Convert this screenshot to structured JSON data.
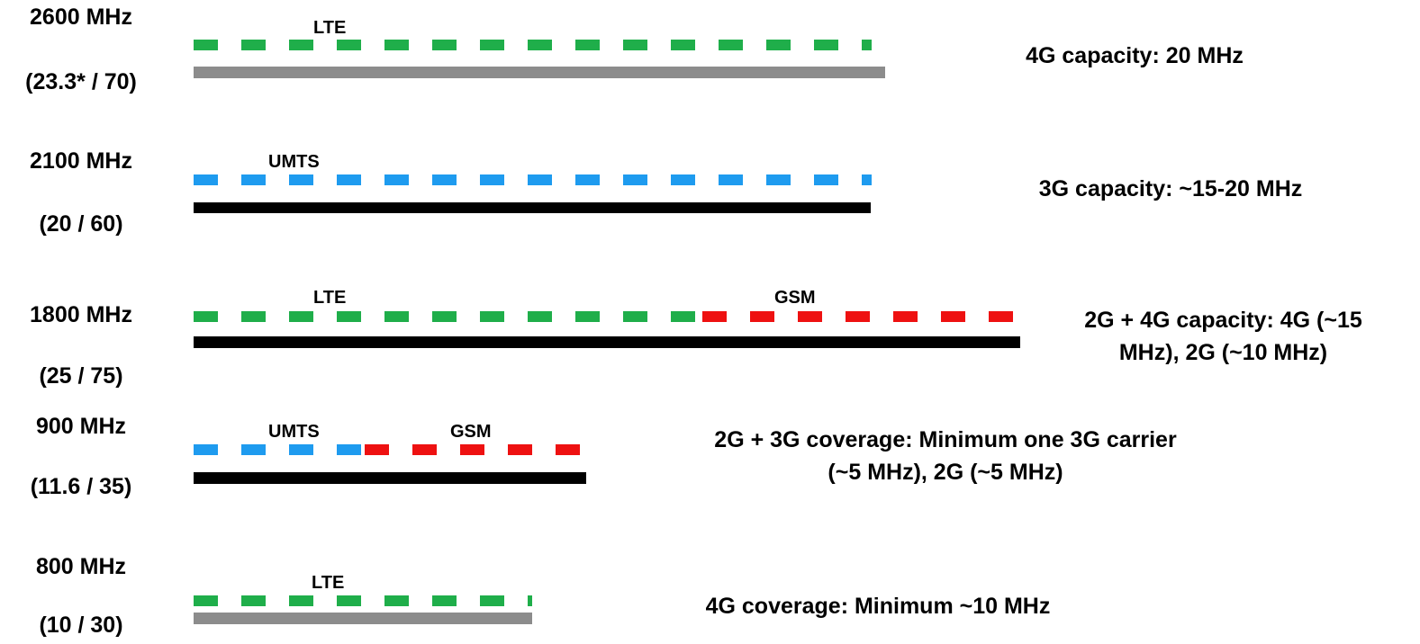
{
  "colors": {
    "lte": "#1fae4a",
    "umts": "#1e9bef",
    "gsm": "#ee1111",
    "gray_bar": "#8c8c8c",
    "black_bar": "#000000"
  },
  "rows": [
    {
      "band": "2600 MHz",
      "holding": "(23.3* / 70)",
      "techs": [
        "LTE"
      ],
      "description": [
        "4G capacity: 20 MHz"
      ]
    },
    {
      "band": "2100 MHz",
      "holding": "(20 / 60)",
      "techs": [
        "UMTS"
      ],
      "description": [
        "3G capacity: ~15-20 MHz"
      ]
    },
    {
      "band": "1800 MHz",
      "holding": "(25 / 75)",
      "techs": [
        "LTE",
        "GSM"
      ],
      "description": [
        "2G + 4G capacity: 4G (~15",
        "MHz), 2G (~10 MHz)"
      ]
    },
    {
      "band": "900 MHz",
      "holding": "(11.6 / 35)",
      "techs": [
        "UMTS",
        "GSM"
      ],
      "description": [
        "2G + 3G coverage: Minimum one 3G carrier",
        "(~5 MHz), 2G (~5 MHz)"
      ]
    },
    {
      "band": "800 MHz",
      "holding": "(10 / 30)",
      "techs": [
        "LTE"
      ],
      "description": [
        "4G coverage: Minimum ~10 MHz"
      ]
    }
  ]
}
